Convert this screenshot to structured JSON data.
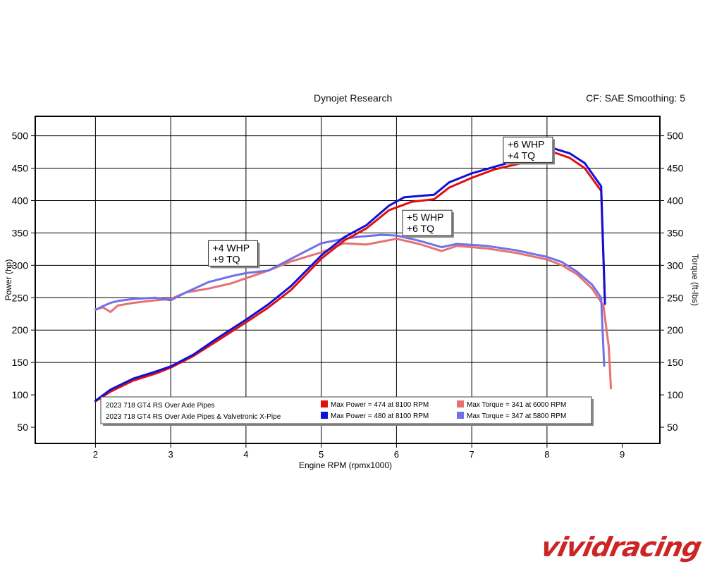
{
  "header": {
    "left": "Dynojet Research",
    "right": "CF: SAE Smoothing: 5"
  },
  "watermark": "vividracing",
  "chart_data": {
    "type": "line",
    "xlabel": "Engine RPM (rpmx1000)",
    "ylabel_left": "Power (hp)",
    "ylabel_right": "Torque (ft-lbs)",
    "xlim": [
      1.2,
      9.5
    ],
    "ylim": [
      25,
      530
    ],
    "xticks": [
      2,
      3,
      4,
      5,
      6,
      7,
      8,
      9
    ],
    "yticks": [
      50,
      100,
      150,
      200,
      250,
      300,
      350,
      400,
      450,
      500
    ],
    "grid": true,
    "series": [
      {
        "name": "2023 718 GT4 RS Over Axle Pipes",
        "measure": "power",
        "color": "#e01010",
        "x": [
          2.0,
          2.2,
          2.5,
          2.8,
          3.0,
          3.3,
          3.6,
          4.0,
          4.3,
          4.6,
          5.0,
          5.3,
          5.6,
          5.9,
          6.2,
          6.5,
          6.7,
          7.0,
          7.3,
          7.6,
          7.9,
          8.1,
          8.3,
          8.5,
          8.72,
          8.77
        ],
        "y": [
          90,
          105,
          122,
          133,
          142,
          160,
          182,
          212,
          235,
          262,
          310,
          338,
          357,
          385,
          398,
          402,
          420,
          435,
          448,
          456,
          465,
          474,
          466,
          450,
          415,
          240
        ]
      },
      {
        "name": "2023 718 GT4 RS Over Axle Pipes & Valvetronic X-Pipe",
        "measure": "power",
        "color": "#1010d8",
        "x": [
          2.0,
          2.2,
          2.5,
          2.8,
          3.0,
          3.3,
          3.6,
          4.0,
          4.3,
          4.6,
          5.0,
          5.3,
          5.6,
          5.9,
          6.1,
          6.3,
          6.5,
          6.7,
          7.0,
          7.3,
          7.6,
          7.9,
          8.1,
          8.3,
          8.5,
          8.72,
          8.77
        ],
        "y": [
          91,
          108,
          125,
          136,
          144,
          162,
          186,
          216,
          240,
          268,
          315,
          343,
          362,
          392,
          405,
          407,
          409,
          428,
          442,
          452,
          462,
          475,
          480,
          473,
          458,
          422,
          242
        ]
      },
      {
        "name": "2023 718 GT4 RS Over Axle Pipes",
        "measure": "torque",
        "color": "#e87070",
        "x": [
          2.0,
          2.1,
          2.2,
          2.3,
          2.5,
          2.8,
          3.0,
          3.2,
          3.5,
          3.8,
          4.0,
          4.3,
          4.6,
          5.0,
          5.3,
          5.6,
          6.0,
          6.3,
          6.6,
          6.8,
          7.2,
          7.6,
          8.0,
          8.2,
          8.4,
          8.6,
          8.75,
          8.82,
          8.85
        ],
        "y": [
          232,
          235,
          228,
          238,
          242,
          246,
          248,
          258,
          264,
          272,
          280,
          292,
          306,
          320,
          334,
          332,
          341,
          333,
          322,
          330,
          326,
          319,
          309,
          300,
          286,
          264,
          238,
          175,
          110
        ]
      },
      {
        "name": "2023 718 GT4 RS Over Axle Pipes & Valvetronic X-Pipe",
        "measure": "torque",
        "color": "#7070e8",
        "x": [
          2.0,
          2.1,
          2.2,
          2.3,
          2.5,
          2.8,
          3.0,
          3.2,
          3.5,
          3.8,
          4.0,
          4.3,
          4.6,
          5.0,
          5.3,
          5.5,
          5.8,
          6.0,
          6.3,
          6.6,
          6.8,
          7.2,
          7.6,
          8.0,
          8.2,
          8.4,
          8.6,
          8.72,
          8.76
        ],
        "y": [
          231,
          237,
          242,
          245,
          248,
          250,
          246,
          258,
          274,
          283,
          288,
          292,
          310,
          334,
          341,
          344,
          347,
          346,
          338,
          328,
          333,
          330,
          323,
          313,
          305,
          290,
          270,
          250,
          145
        ]
      }
    ],
    "annotations": [
      {
        "lines": [
          "+4 WHP",
          "+9 TQ"
        ],
        "x": 3.5,
        "y": 338
      },
      {
        "lines": [
          "+5 WHP",
          "+6 TQ"
        ],
        "x": 6.08,
        "y": 385
      },
      {
        "lines": [
          "+6 WHP",
          "+4 TQ"
        ],
        "x": 7.42,
        "y": 498
      }
    ],
    "legend": {
      "runs": [
        "2023 718 GT4 RS Over Axle Pipes",
        "2023 718 GT4 RS Over Axle Pipes & Valvetronic X-Pipe"
      ],
      "entries": [
        {
          "text": "Max Power = 474 at 8100 RPM",
          "color": "#e01010"
        },
        {
          "text": "Max Power = 480 at 8100 RPM",
          "color": "#1010d8"
        },
        {
          "text": "Max Torque = 341 at 6000 RPM",
          "color": "#e87070"
        },
        {
          "text": "Max Torque = 347 at 5800 RPM",
          "color": "#7070e8"
        }
      ]
    }
  }
}
